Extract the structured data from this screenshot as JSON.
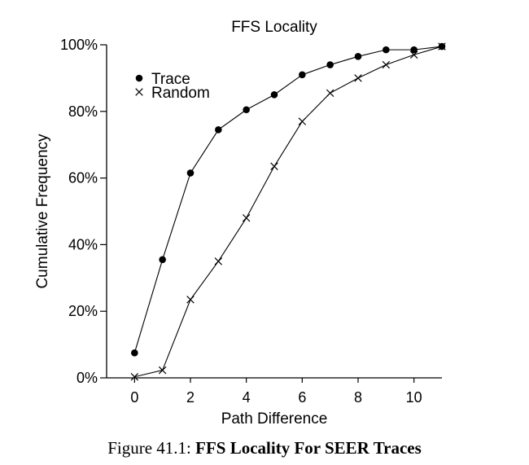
{
  "chart_data": {
    "type": "line",
    "title": "FFS Locality",
    "xlabel": "Path Difference",
    "ylabel": "Cumulative Frequency",
    "xlim": [
      -1,
      11
    ],
    "ylim": [
      0,
      100
    ],
    "x_ticks": [
      0,
      2,
      4,
      6,
      8,
      10
    ],
    "x_tick_labels": [
      "0",
      "2",
      "4",
      "6",
      "8",
      "10"
    ],
    "y_ticks": [
      0,
      20,
      40,
      60,
      80,
      100
    ],
    "y_tick_labels": [
      "0%",
      "20%",
      "40%",
      "60%",
      "80%",
      "100%"
    ],
    "grid": false,
    "legend_position": "top-left",
    "x": [
      0,
      1,
      2,
      3,
      4,
      5,
      6,
      7,
      8,
      9,
      10,
      11
    ],
    "series": [
      {
        "name": "Trace",
        "marker": "filled-circle",
        "values": [
          7.5,
          35.5,
          61.5,
          74.5,
          80.5,
          85,
          91,
          94,
          96.5,
          98.5,
          98.5,
          99.5
        ]
      },
      {
        "name": "Random",
        "marker": "cross",
        "values": [
          0.3,
          2.3,
          23.5,
          35,
          48,
          63.5,
          77,
          85.5,
          90,
          94,
          97,
          99.5
        ]
      }
    ]
  },
  "caption": {
    "label": "Figure 41.1:",
    "title": "FFS Locality For SEER Traces"
  }
}
